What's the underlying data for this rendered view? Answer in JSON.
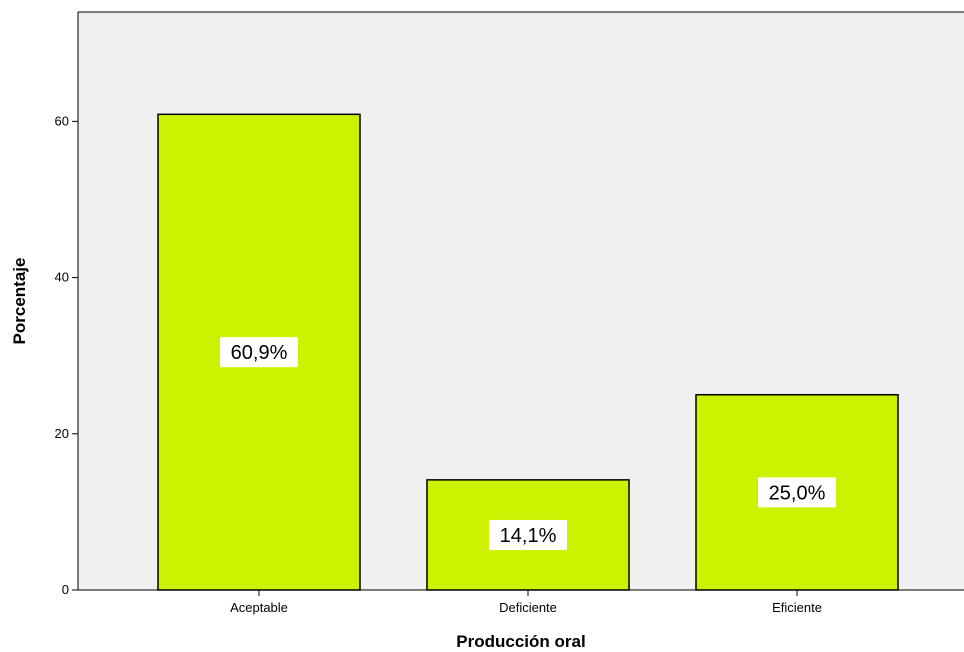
{
  "chart_data": {
    "type": "bar",
    "categories": [
      "Aceptable",
      "Deficiente",
      "Eficiente"
    ],
    "values": [
      60.9,
      14.1,
      25.0
    ],
    "data_labels": [
      "60,9%",
      "14,1%",
      "25,0%"
    ],
    "title": "",
    "xlabel": "Producción oral",
    "ylabel": "Porcentaje",
    "ylim": [
      0,
      74
    ],
    "yticks": [
      0,
      20,
      40,
      60
    ],
    "ytick_labels": [
      "0",
      "20",
      "40",
      "60"
    ],
    "grid": false,
    "legend": "none",
    "colors": {
      "bar_fill": "#ccf200",
      "bar_stroke": "#000000",
      "plot_background": "#f0f0f0",
      "data_label_background": "#ffffff"
    }
  }
}
